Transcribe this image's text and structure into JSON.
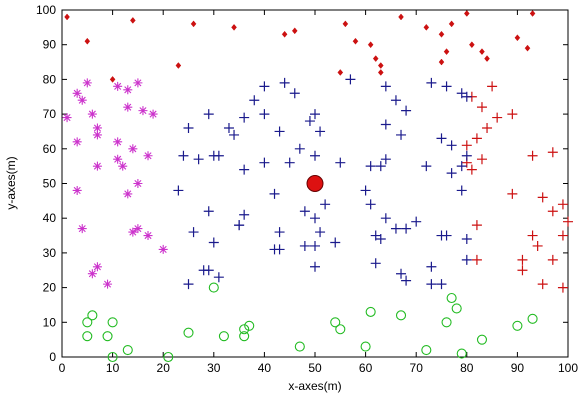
{
  "chart_data": {
    "type": "scatter",
    "title": "",
    "xlabel": "x-axes(m)",
    "ylabel": "y-axes(m)",
    "xlim": [
      0,
      100
    ],
    "ylim": [
      0,
      100
    ],
    "xticks": [
      "0",
      "10",
      "20",
      "30",
      "40",
      "50",
      "60",
      "70",
      "80",
      "90",
      "100"
    ],
    "yticks": [
      "0",
      "10",
      "20",
      "30",
      "40",
      "50",
      "60",
      "70",
      "80",
      "90",
      "100"
    ],
    "grid": false,
    "legend": "none",
    "series": [
      {
        "marker": "star",
        "color": "#cc33cc",
        "points": [
          [
            1,
            69
          ],
          [
            3,
            62
          ],
          [
            5,
            79
          ],
          [
            3,
            76
          ],
          [
            4,
            74
          ],
          [
            6,
            70
          ],
          [
            7,
            66
          ],
          [
            7,
            64
          ],
          [
            3,
            48
          ],
          [
            7,
            55
          ],
          [
            11,
            78
          ],
          [
            13,
            77
          ],
          [
            15,
            79
          ],
          [
            13,
            72
          ],
          [
            16,
            71
          ],
          [
            18,
            70
          ],
          [
            11,
            62
          ],
          [
            14,
            60
          ],
          [
            17,
            58
          ],
          [
            11,
            57
          ],
          [
            12,
            55
          ],
          [
            15,
            50
          ],
          [
            13,
            47
          ],
          [
            4,
            37
          ],
          [
            14,
            36
          ],
          [
            15,
            37
          ],
          [
            17,
            35
          ],
          [
            7,
            26
          ],
          [
            6,
            24
          ],
          [
            9,
            21
          ],
          [
            20,
            31
          ]
        ]
      },
      {
        "marker": "diamond",
        "color": "#cc1111",
        "points": [
          [
            1,
            98
          ],
          [
            5,
            91
          ],
          [
            14,
            97
          ],
          [
            26,
            96
          ],
          [
            34,
            95
          ],
          [
            44,
            93
          ],
          [
            46,
            94
          ],
          [
            56,
            96
          ],
          [
            58,
            91
          ],
          [
            61,
            90
          ],
          [
            62,
            86
          ],
          [
            63,
            84
          ],
          [
            63,
            82
          ],
          [
            67,
            98
          ],
          [
            72,
            95
          ],
          [
            75,
            93
          ],
          [
            76,
            88
          ],
          [
            75,
            85
          ],
          [
            80,
            99
          ],
          [
            77,
            96
          ],
          [
            81,
            90
          ],
          [
            83,
            88
          ],
          [
            84,
            86
          ],
          [
            93,
            99
          ],
          [
            90,
            92
          ],
          [
            92,
            89
          ],
          [
            10,
            80
          ],
          [
            23,
            84
          ],
          [
            55,
            82
          ]
        ]
      },
      {
        "marker": "plus",
        "color": "#cc1111",
        "points": [
          [
            85,
            78
          ],
          [
            81,
            75
          ],
          [
            83,
            72
          ],
          [
            86,
            69
          ],
          [
            89,
            70
          ],
          [
            84,
            66
          ],
          [
            82,
            63
          ],
          [
            80,
            61
          ],
          [
            83,
            57
          ],
          [
            80,
            56
          ],
          [
            81,
            54
          ],
          [
            89,
            47
          ],
          [
            93,
            58
          ],
          [
            97,
            59
          ],
          [
            95,
            46
          ],
          [
            99,
            44
          ],
          [
            97,
            42
          ],
          [
            100,
            39
          ],
          [
            99,
            35
          ],
          [
            93,
            35
          ],
          [
            94,
            32
          ],
          [
            91,
            28
          ],
          [
            91,
            25
          ],
          [
            95,
            21
          ],
          [
            97,
            28
          ],
          [
            99,
            20
          ],
          [
            82,
            38
          ],
          [
            82,
            28
          ]
        ]
      },
      {
        "marker": "plus",
        "color": "#1a1a8c",
        "points": [
          [
            40,
            78
          ],
          [
            44,
            79
          ],
          [
            46,
            76
          ],
          [
            38,
            74
          ],
          [
            40,
            70
          ],
          [
            36,
            69
          ],
          [
            33,
            66
          ],
          [
            29,
            70
          ],
          [
            34,
            64
          ],
          [
            25,
            66
          ],
          [
            43,
            65
          ],
          [
            49,
            68
          ],
          [
            50,
            70
          ],
          [
            51,
            65
          ],
          [
            47,
            60
          ],
          [
            40,
            56
          ],
          [
            30,
            58
          ],
          [
            31,
            58
          ],
          [
            27,
            57
          ],
          [
            24,
            58
          ],
          [
            36,
            54
          ],
          [
            45,
            56
          ],
          [
            50,
            58
          ],
          [
            57,
            80
          ],
          [
            55,
            56
          ],
          [
            64,
            78
          ],
          [
            66,
            74
          ],
          [
            68,
            71
          ],
          [
            73,
            79
          ],
          [
            76,
            78
          ],
          [
            79,
            76
          ],
          [
            80,
            75
          ],
          [
            64,
            67
          ],
          [
            67,
            64
          ],
          [
            61,
            55
          ],
          [
            64,
            57
          ],
          [
            63,
            55
          ],
          [
            75,
            63
          ],
          [
            77,
            61
          ],
          [
            80,
            58
          ],
          [
            79,
            55
          ],
          [
            77,
            53
          ],
          [
            72,
            55
          ],
          [
            79,
            48
          ],
          [
            60,
            48
          ],
          [
            61,
            44
          ],
          [
            64,
            40
          ],
          [
            66,
            37
          ],
          [
            70,
            39
          ],
          [
            68,
            37
          ],
          [
            75,
            35
          ],
          [
            76,
            35
          ],
          [
            80,
            34
          ],
          [
            62,
            35
          ],
          [
            63,
            34
          ],
          [
            80,
            28
          ],
          [
            62,
            27
          ],
          [
            67,
            24
          ],
          [
            73,
            26
          ],
          [
            68,
            22
          ],
          [
            73,
            21
          ],
          [
            75,
            21
          ],
          [
            23,
            48
          ],
          [
            29,
            42
          ],
          [
            26,
            36
          ],
          [
            36,
            41
          ],
          [
            35,
            38
          ],
          [
            35,
            38
          ],
          [
            42,
            47
          ],
          [
            48,
            42
          ],
          [
            50,
            40
          ],
          [
            52,
            44
          ],
          [
            50,
            32
          ],
          [
            54,
            33
          ],
          [
            48,
            32
          ],
          [
            43,
            31
          ],
          [
            42,
            31
          ],
          [
            43,
            36
          ],
          [
            51,
            36
          ],
          [
            30,
            33
          ],
          [
            28,
            25
          ],
          [
            29,
            25
          ],
          [
            31,
            23
          ],
          [
            25,
            21
          ],
          [
            50,
            26
          ]
        ]
      },
      {
        "marker": "circle",
        "color": "#22bb22",
        "points": [
          [
            30,
            20
          ],
          [
            6,
            12
          ],
          [
            5,
            10
          ],
          [
            10,
            10
          ],
          [
            5,
            6
          ],
          [
            9,
            6
          ],
          [
            13,
            2
          ],
          [
            10,
            0
          ],
          [
            21,
            0
          ],
          [
            25,
            7
          ],
          [
            32,
            6
          ],
          [
            36,
            8
          ],
          [
            37,
            9
          ],
          [
            36,
            6
          ],
          [
            47,
            3
          ],
          [
            55,
            8
          ],
          [
            54,
            10
          ],
          [
            61,
            13
          ],
          [
            67,
            12
          ],
          [
            72,
            2
          ],
          [
            76,
            10
          ],
          [
            78,
            14
          ],
          [
            77,
            17
          ],
          [
            79,
            1
          ],
          [
            83,
            5
          ],
          [
            90,
            9
          ],
          [
            93,
            11
          ],
          [
            60,
            3
          ]
        ]
      },
      {
        "marker": "filled-circle",
        "color": "#dd1111",
        "points": [
          [
            50,
            50
          ]
        ]
      }
    ]
  }
}
